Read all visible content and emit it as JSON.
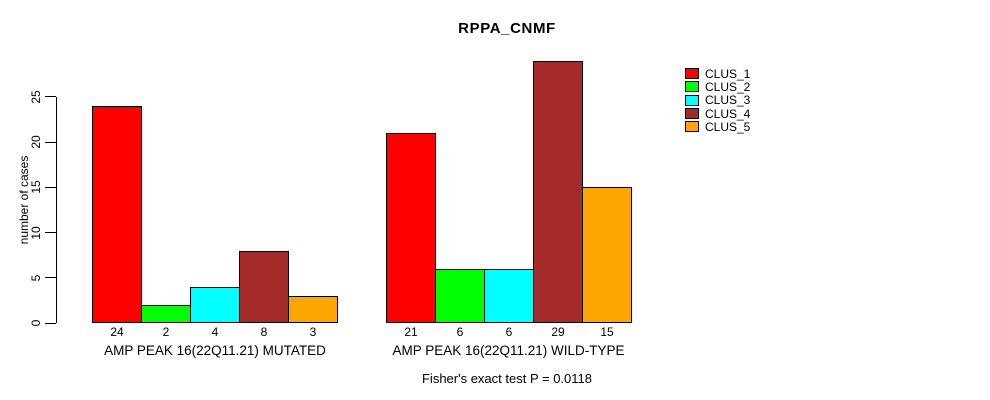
{
  "title": "RPPA_CNMF",
  "chart_data": {
    "type": "bar",
    "title": "RPPA_CNMF",
    "xlabel": "",
    "ylabel": "number of cases",
    "ylim": [
      0,
      25
    ],
    "yticks": [
      0,
      5,
      10,
      15,
      20,
      25
    ],
    "grid": false,
    "legend_position": "top-right",
    "categories": [
      "AMP PEAK 16(22Q11.21) MUTATED",
      "AMP PEAK 16(22Q11.21) WILD-TYPE"
    ],
    "series": [
      {
        "name": "CLUS_1",
        "color": "#FF0000",
        "values": [
          24,
          21
        ]
      },
      {
        "name": "CLUS_2",
        "color": "#00FF00",
        "values": [
          2,
          6
        ]
      },
      {
        "name": "CLUS_3",
        "color": "#00FFFF",
        "values": [
          4,
          6
        ]
      },
      {
        "name": "CLUS_4",
        "color": "#A52A2A",
        "values": [
          8,
          29
        ]
      },
      {
        "name": "CLUS_5",
        "color": "#FFA500",
        "values": [
          3,
          15
        ]
      }
    ],
    "bar_value_labels_shown": true,
    "annotation": "Fisher's exact test P = 0.0118"
  }
}
